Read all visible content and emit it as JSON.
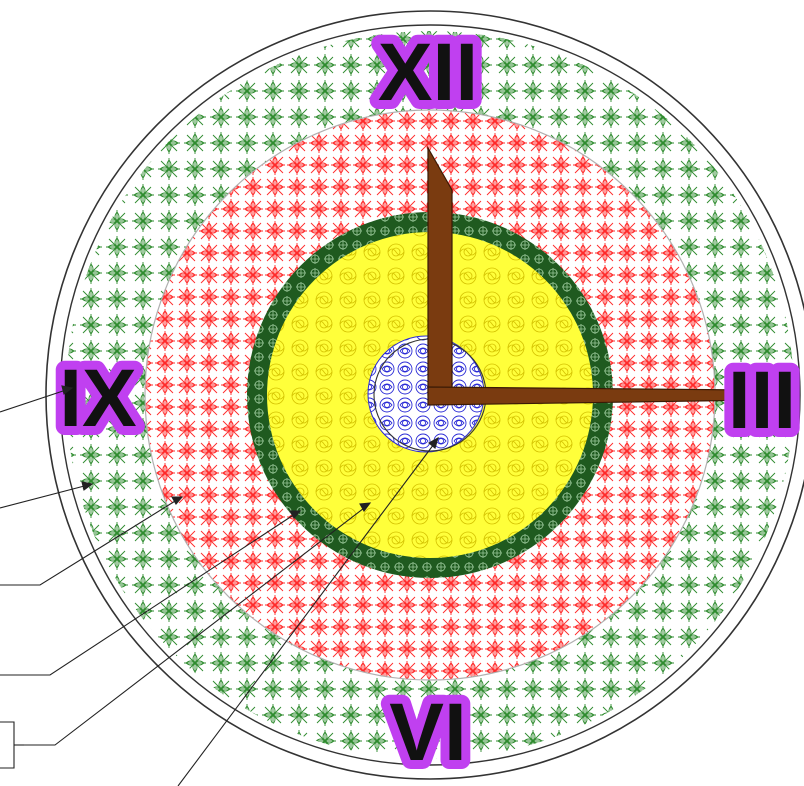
{
  "clock": {
    "numerals": {
      "twelve": "XII",
      "three": "III",
      "six": "VI",
      "nine": "IX"
    }
  },
  "colors": {
    "outer_ring": "#2e8b2e",
    "middle_ring": "#ff3030",
    "hedge_ring": "#1f5a1f",
    "inner_field": "#ffff33",
    "center": "#3333dd",
    "hands": "#7a3b10",
    "numeral_glow": "#c040f0",
    "numeral_text": "#111111",
    "outline": "#333333"
  }
}
